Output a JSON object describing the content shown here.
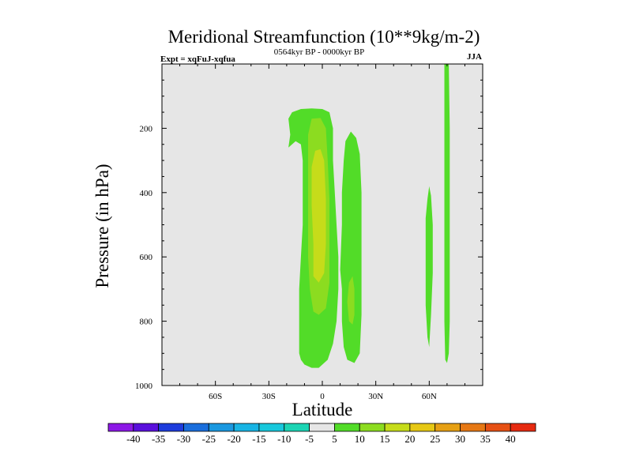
{
  "chart_data": {
    "type": "contour",
    "title": "Meridional Streamfunction (10**9kg/m-2)",
    "subtitle_left": "Expt = xqFuJ-xqfua",
    "subtitle_center": "0564kyr BP - 0000kyr BP",
    "subtitle_right": "JJA",
    "xlabel": "Latitude",
    "ylabel": "Pressure (in hPa)",
    "xlim": [
      -90,
      90
    ],
    "ylim": [
      1000,
      0
    ],
    "x_ticks": [
      {
        "value": -60,
        "label": "60S"
      },
      {
        "value": -30,
        "label": "30S"
      },
      {
        "value": 0,
        "label": "0"
      },
      {
        "value": 30,
        "label": "30N"
      },
      {
        "value": 60,
        "label": "60N"
      }
    ],
    "y_ticks": [
      {
        "value": 200,
        "label": "200"
      },
      {
        "value": 400,
        "label": "400"
      },
      {
        "value": 600,
        "label": "600"
      },
      {
        "value": 800,
        "label": "800"
      },
      {
        "value": 1000,
        "label": "1000"
      }
    ],
    "colorbar": {
      "labels": [
        "-40",
        "-35",
        "-30",
        "-25",
        "-20",
        "-15",
        "-10",
        "-5",
        "5",
        "10",
        "15",
        "20",
        "25",
        "30",
        "35",
        "40"
      ],
      "colors": [
        "#8c18e6",
        "#5a10dc",
        "#1e3cdc",
        "#1a6edc",
        "#1a98e0",
        "#18b4e4",
        "#18c8dc",
        "#1cd4b4",
        "#e6e6e6",
        "#52dc28",
        "#8cdc20",
        "#c6dc1a",
        "#e6c814",
        "#e6a014",
        "#e67814",
        "#e65014",
        "#e62a10"
      ]
    },
    "background_color": "#e6e6e6",
    "regions": [
      {
        "name": "main-cell-level1",
        "level": 5,
        "color": "#52dc28",
        "points": [
          [
            -17,
            150
          ],
          [
            -12,
            140
          ],
          [
            -6,
            138
          ],
          [
            0,
            140
          ],
          [
            4,
            150
          ],
          [
            6,
            200
          ],
          [
            6,
            300
          ],
          [
            7,
            400
          ],
          [
            8,
            500
          ],
          [
            9,
            600
          ],
          [
            9,
            700
          ],
          [
            8,
            800
          ],
          [
            6,
            870
          ],
          [
            3,
            920
          ],
          [
            -2,
            945
          ],
          [
            -6,
            945
          ],
          [
            -10,
            935
          ],
          [
            -12,
            920
          ],
          [
            -13,
            900
          ],
          [
            -13,
            700
          ],
          [
            -12,
            600
          ],
          [
            -11,
            500
          ],
          [
            -11,
            400
          ],
          [
            -11,
            300
          ],
          [
            -12,
            250
          ],
          [
            -15,
            240
          ],
          [
            -19,
            260
          ],
          [
            -18,
            220
          ],
          [
            -19,
            170
          ]
        ]
      },
      {
        "name": "main-cell-level2",
        "level": 10,
        "color": "#8cdc20",
        "points": [
          [
            -6,
            170
          ],
          [
            -1,
            168
          ],
          [
            2,
            200
          ],
          [
            3,
            300
          ],
          [
            4,
            420
          ],
          [
            4,
            540
          ],
          [
            4,
            680
          ],
          [
            2,
            760
          ],
          [
            -2,
            780
          ],
          [
            -5,
            770
          ],
          [
            -7,
            700
          ],
          [
            -8,
            600
          ],
          [
            -8,
            450
          ],
          [
            -8,
            320
          ],
          [
            -8,
            220
          ]
        ]
      },
      {
        "name": "main-cell-level3",
        "level": 15,
        "color": "#c6dc1a",
        "points": [
          [
            -4,
            270
          ],
          [
            -1,
            265
          ],
          [
            1,
            300
          ],
          [
            2,
            420
          ],
          [
            2,
            560
          ],
          [
            1,
            650
          ],
          [
            -2,
            680
          ],
          [
            -5,
            660
          ],
          [
            -5,
            560
          ],
          [
            -6,
            440
          ],
          [
            -6,
            320
          ]
        ]
      },
      {
        "name": "nh-cell-level1",
        "level": 5,
        "color": "#52dc28",
        "points": [
          [
            13,
            240
          ],
          [
            16,
            210
          ],
          [
            19,
            230
          ],
          [
            21,
            280
          ],
          [
            22,
            400
          ],
          [
            22,
            600
          ],
          [
            22,
            780
          ],
          [
            21,
            900
          ],
          [
            18,
            930
          ],
          [
            14,
            920
          ],
          [
            12,
            880
          ],
          [
            11,
            800
          ],
          [
            11,
            700
          ],
          [
            10,
            640
          ],
          [
            11,
            500
          ],
          [
            11,
            400
          ],
          [
            12,
            300
          ]
        ]
      },
      {
        "name": "nh-cell-level2",
        "level": 10,
        "color": "#8cdc20",
        "points": [
          [
            15,
            680
          ],
          [
            17,
            660
          ],
          [
            18,
            700
          ],
          [
            18,
            780
          ],
          [
            17,
            810
          ],
          [
            15,
            800
          ],
          [
            14,
            740
          ]
        ]
      },
      {
        "name": "cell-60n",
        "level": 5,
        "color": "#52dc28",
        "points": [
          [
            59,
            420
          ],
          [
            60,
            380
          ],
          [
            61,
            410
          ],
          [
            62,
            500
          ],
          [
            62,
            650
          ],
          [
            61,
            780
          ],
          [
            60,
            880
          ],
          [
            59,
            850
          ],
          [
            58,
            750
          ],
          [
            58,
            600
          ],
          [
            58,
            480
          ]
        ]
      },
      {
        "name": "cell-70n",
        "level": 5,
        "color": "#52dc28",
        "points": [
          [
            68.5,
            0
          ],
          [
            71,
            0
          ],
          [
            71.5,
            200
          ],
          [
            71.5,
            500
          ],
          [
            71.5,
            800
          ],
          [
            71,
            900
          ],
          [
            70,
            930
          ],
          [
            69,
            920
          ],
          [
            68.5,
            800
          ],
          [
            68.5,
            500
          ],
          [
            68.5,
            200
          ]
        ]
      }
    ]
  }
}
